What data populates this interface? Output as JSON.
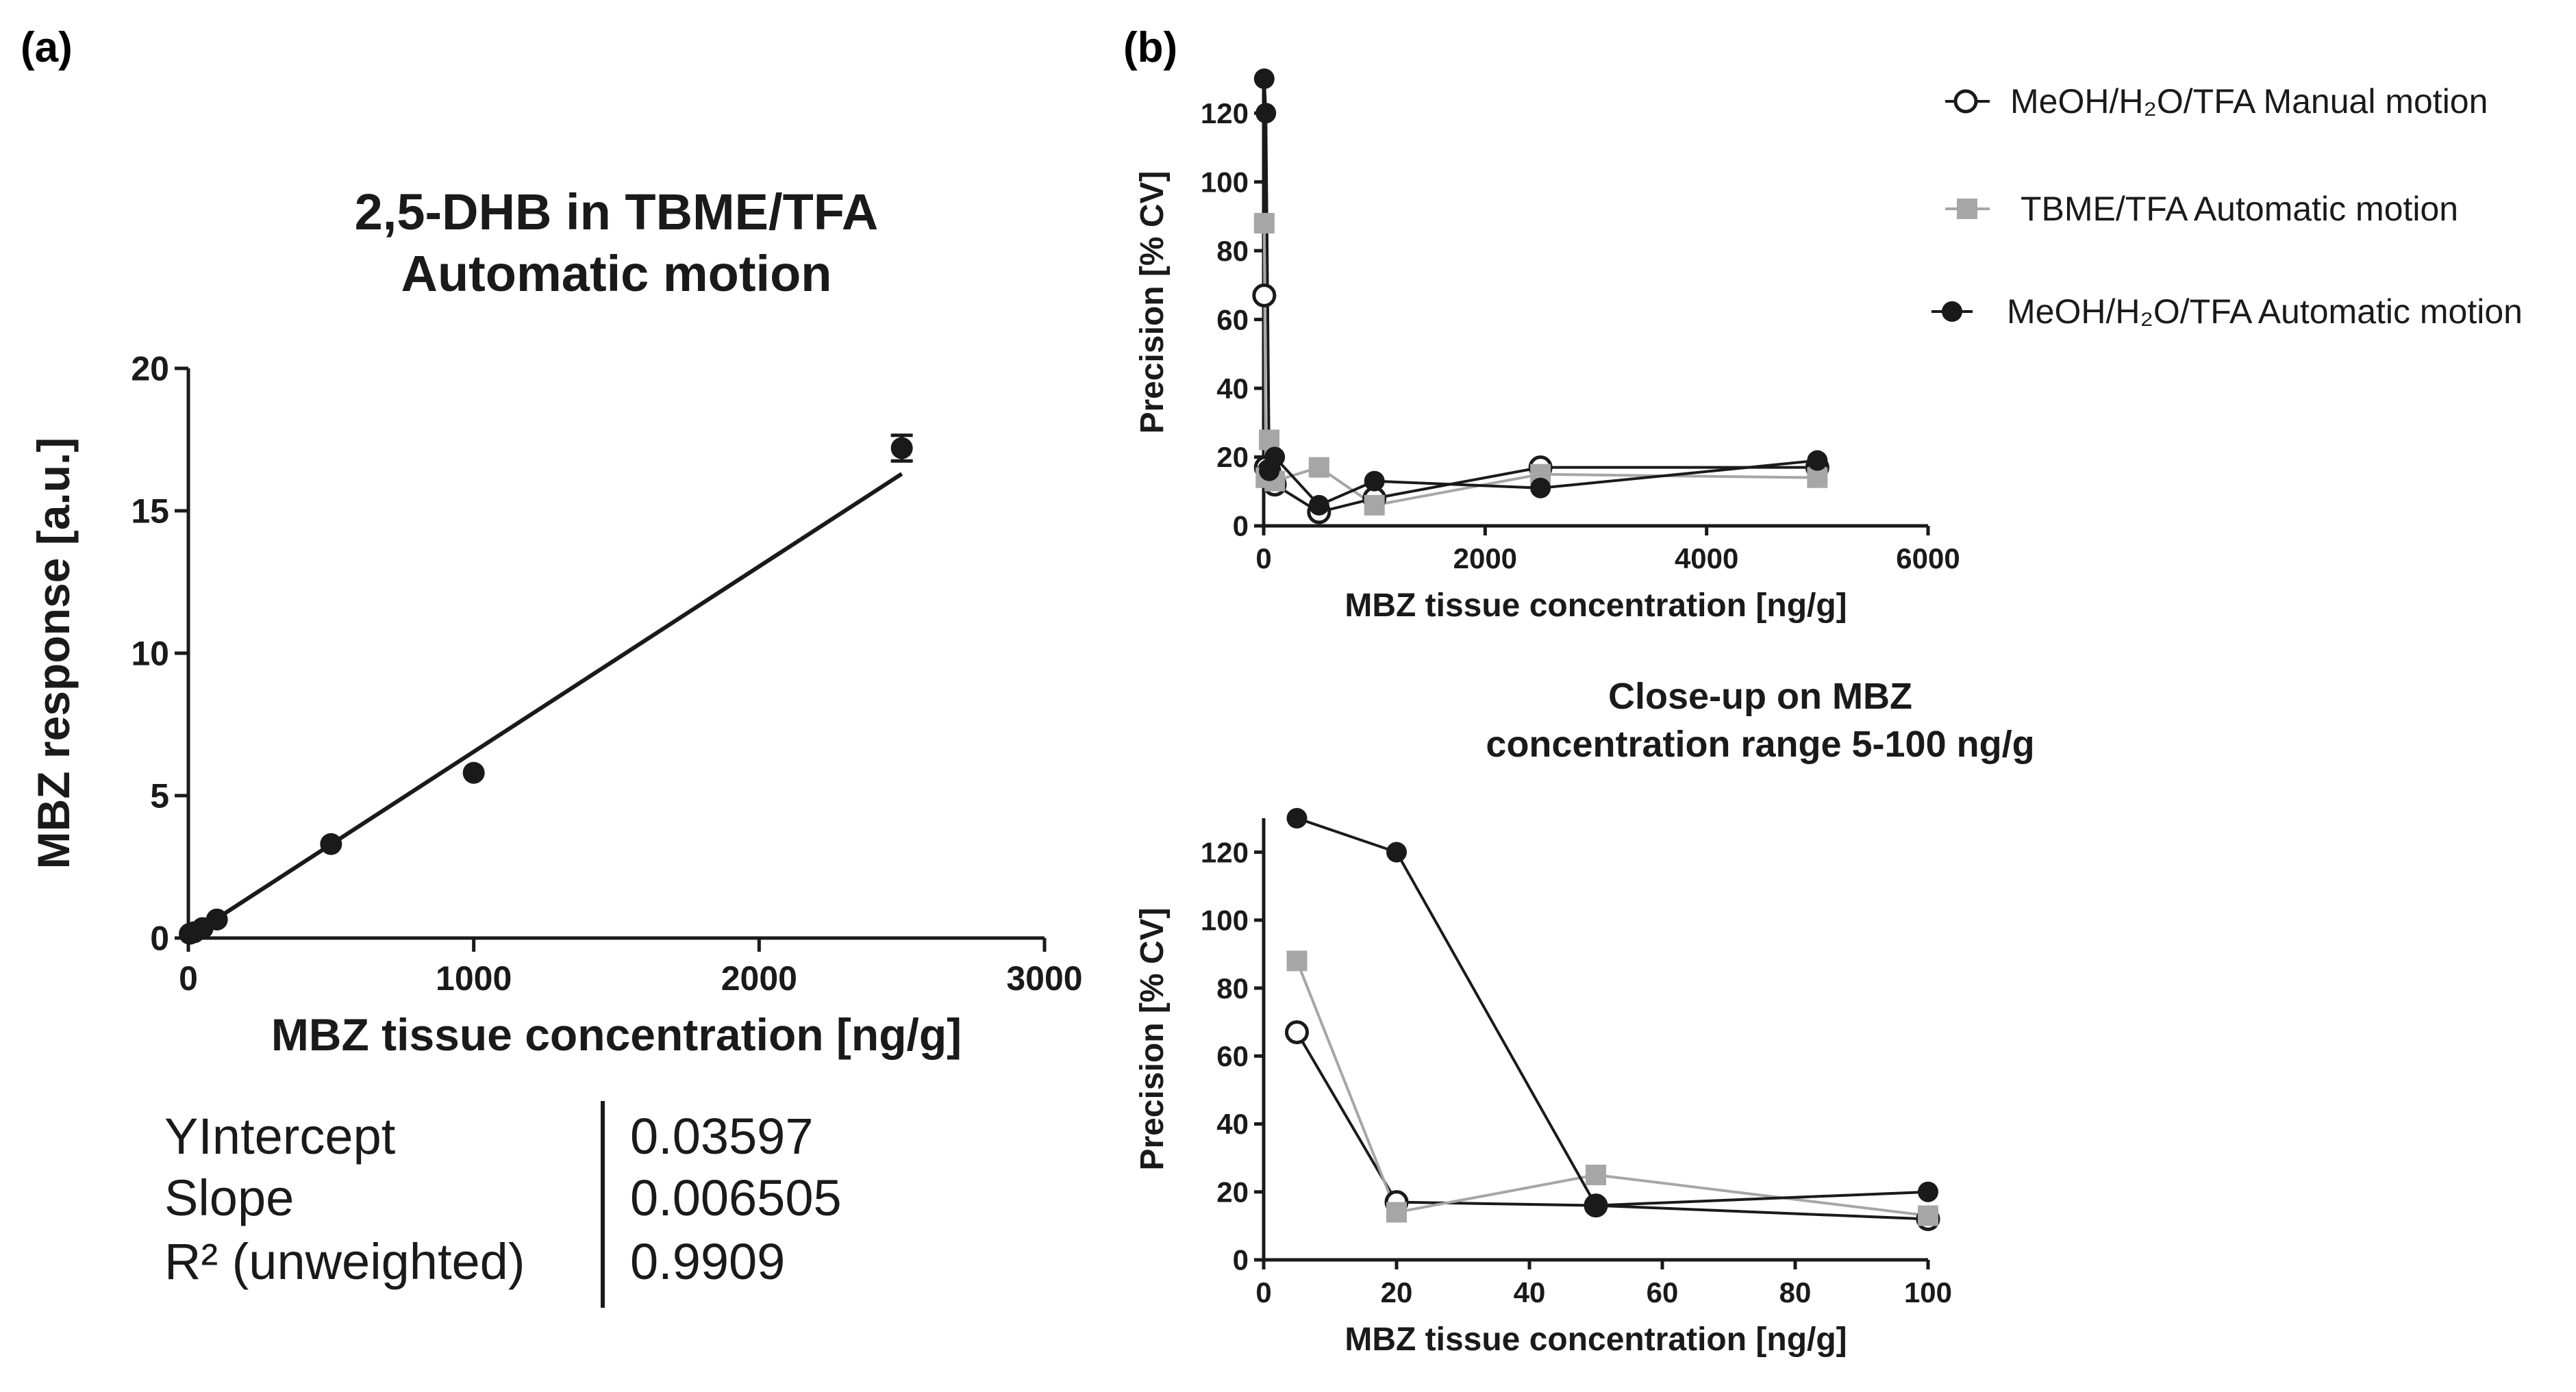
{
  "panel_labels": {
    "a": "(a)",
    "b": "(b)"
  },
  "colors": {
    "black": "#1a1a1a",
    "gray": "#a6a6a6",
    "white": "#ffffff"
  },
  "chart_data": [
    {
      "id": "a",
      "type": "scatter",
      "title_lines": [
        "2,5-DHB in TBME/TFA",
        "Automatic motion"
      ],
      "xlabel": "MBZ tissue concentration [ng/g]",
      "ylabel": "MBZ response [a.u.]",
      "xlim": [
        0,
        3000
      ],
      "ylim": [
        0,
        20
      ],
      "xticks": [
        0,
        1000,
        2000,
        3000
      ],
      "yticks": [
        0,
        5,
        10,
        15,
        20
      ],
      "grid": false,
      "series": [
        {
          "marker": "circle-filled",
          "color": "#1a1a1a",
          "points": [
            {
              "x": 5,
              "y": 0.15,
              "err": 0
            },
            {
              "x": 20,
              "y": 0.2,
              "err": 0
            },
            {
              "x": 50,
              "y": 0.35,
              "err": 0
            },
            {
              "x": 100,
              "y": 0.65,
              "err": 0
            },
            {
              "x": 500,
              "y": 3.3,
              "err": 0
            },
            {
              "x": 1000,
              "y": 5.8,
              "err": 0
            },
            {
              "x": 2500,
              "y": 17.2,
              "err": 0.45
            }
          ]
        }
      ],
      "fit": {
        "intercept": 0.03597,
        "slope": 0.006505,
        "x_range": [
          0,
          2500
        ]
      },
      "stats": [
        {
          "label": "YIntercept",
          "value": "0.03597"
        },
        {
          "label": "Slope",
          "value": "0.006505"
        },
        {
          "label": "R² (unweighted)",
          "value": "0.9909"
        }
      ]
    },
    {
      "id": "b-top",
      "type": "line",
      "title": "",
      "xlabel": "MBZ tissue concentration [ng/g]",
      "ylabel": "Precision [% CV]",
      "xlim": [
        0,
        6000
      ],
      "ylim": [
        0,
        130
      ],
      "xticks": [
        0,
        2000,
        4000,
        6000
      ],
      "yticks": [
        0,
        20,
        40,
        60,
        80,
        100,
        120
      ],
      "grid": false,
      "legend_position": "right",
      "series": [
        {
          "name": "MeOH/H₂O/TFA Manual motion",
          "marker": "circle-open",
          "color": "#1a1a1a",
          "x": [
            5,
            20,
            50,
            100,
            500,
            1000,
            2500,
            5000
          ],
          "y": [
            67,
            17,
            16,
            12,
            4,
            8,
            17,
            17
          ]
        },
        {
          "name": "TBME/TFA Automatic motion",
          "marker": "square",
          "color": "#a6a6a6",
          "x": [
            5,
            20,
            50,
            100,
            500,
            1000,
            2500,
            5000
          ],
          "y": [
            88,
            14,
            25,
            13,
            17,
            6,
            15,
            14
          ]
        },
        {
          "name": "MeOH/H₂O/TFA Automatic motion",
          "marker": "circle-filled",
          "color": "#1a1a1a",
          "x": [
            5,
            20,
            50,
            100,
            500,
            1000,
            2500,
            5000
          ],
          "y": [
            130,
            120,
            16,
            20,
            6,
            13,
            11,
            19
          ]
        }
      ]
    },
    {
      "id": "b-bottom",
      "type": "line",
      "title_lines": [
        "Close-up on MBZ",
        "concentration range 5-100 ng/g"
      ],
      "xlabel": "MBZ tissue concentration [ng/g]",
      "ylabel": "Precision [% CV]",
      "xlim": [
        0,
        100
      ],
      "ylim": [
        0,
        130
      ],
      "xticks": [
        0,
        20,
        40,
        60,
        80,
        100
      ],
      "yticks": [
        0,
        20,
        40,
        60,
        80,
        100,
        120
      ],
      "grid": false,
      "series": [
        {
          "name": "MeOH/H₂O/TFA Manual motion",
          "marker": "circle-open",
          "color": "#1a1a1a",
          "x": [
            5,
            20,
            50,
            100
          ],
          "y": [
            67,
            17,
            16,
            12
          ]
        },
        {
          "name": "TBME/TFA Automatic motion",
          "marker": "square",
          "color": "#a6a6a6",
          "x": [
            5,
            20,
            50,
            100
          ],
          "y": [
            88,
            14,
            25,
            13
          ]
        },
        {
          "name": "MeOH/H₂O/TFA Automatic motion",
          "marker": "circle-filled",
          "color": "#1a1a1a",
          "x": [
            5,
            20,
            50,
            100
          ],
          "y": [
            130,
            120,
            16,
            20
          ]
        }
      ]
    }
  ]
}
